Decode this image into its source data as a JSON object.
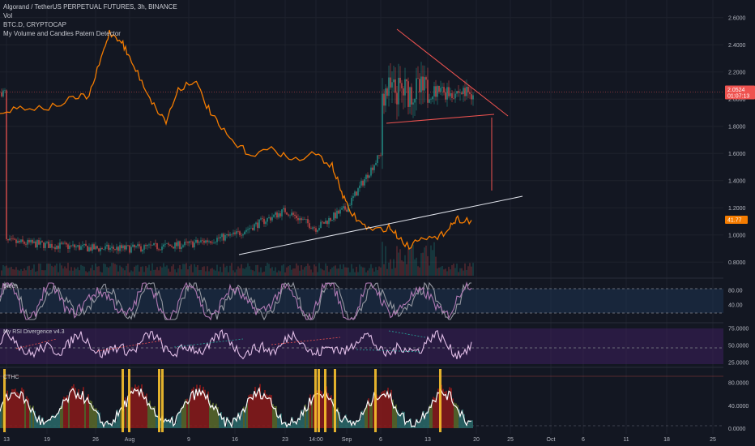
{
  "header": {
    "symbol_line": "Algorand / TetherUS PERPETUAL FUTURES, 3h, BINANCE",
    "vol_label": "Vol",
    "overlay_label": "BTC.D, CRYPTOCAP",
    "detector_label": "My Volume and Candles Patern Detector"
  },
  "panes": {
    "stoch_title": "Stoch",
    "rsi_title": "My RSI Divergence v4.3",
    "last_title": "CTHC"
  },
  "price_tags": {
    "last_price": "2.0524",
    "countdown": "01:07:13",
    "btcd_value": "41.77"
  },
  "colors": {
    "background": "#131722",
    "candle_up": "#26a69a",
    "candle_down": "#ef5350",
    "btcd_line": "#f57c00",
    "trendline": "#e0e3eb",
    "triangle": "#ef5350",
    "stoch": "#9598a1",
    "rsi": "#e1bee7",
    "highlight": "#f9c22e"
  },
  "chart_data": [
    {
      "type": "candlestick",
      "name": "main-price",
      "title": "Algorand / TetherUS PERPETUAL FUTURES, 3h, BINANCE",
      "ylim": [
        0.7,
        2.7
      ],
      "yticks": [
        "2.6000",
        "2.4000",
        "2.2000",
        "2.0000",
        "1.8000",
        "1.6000",
        "1.4000",
        "1.2000",
        "1.0000",
        "0.8000"
      ],
      "xticks": [
        "13",
        "19",
        "26",
        "Aug",
        "9",
        "16",
        "23",
        "14:00",
        "Sep",
        "6",
        "13",
        "20",
        "25",
        "Oct",
        "6",
        "11",
        "18",
        "25"
      ],
      "approx_close_path": [
        {
          "x": "13",
          "y": 0.95
        },
        {
          "x": "26",
          "y": 0.9
        },
        {
          "x": "Aug",
          "y": 0.9
        },
        {
          "x": "9",
          "y": 0.93
        },
        {
          "x": "16",
          "y": 1.0
        },
        {
          "x": "23",
          "y": 1.18
        },
        {
          "x": "14:00",
          "y": 1.05
        },
        {
          "x": "Sep",
          "y": 1.2
        },
        {
          "x": "6",
          "y": 1.6
        },
        {
          "x": "13",
          "y": 2.1
        },
        {
          "x": "20",
          "y": 2.05
        }
      ],
      "overlay": {
        "name": "BTC.D, CRYPTOCAP",
        "last": "41.77"
      }
    },
    {
      "type": "line",
      "name": "Stoch",
      "levels": [
        "80.00",
        "40.00"
      ],
      "ylim": [
        0,
        100
      ]
    },
    {
      "type": "line",
      "name": "My RSI Divergence v4.3",
      "levels": [
        "75.0000",
        "50.0000",
        "25.0000"
      ],
      "ylim": [
        20,
        80
      ]
    },
    {
      "type": "area",
      "name": "CTHC",
      "levels": [
        "80.0000",
        "40.0000",
        "0.0000"
      ],
      "ylim": [
        -5,
        100
      ]
    }
  ]
}
